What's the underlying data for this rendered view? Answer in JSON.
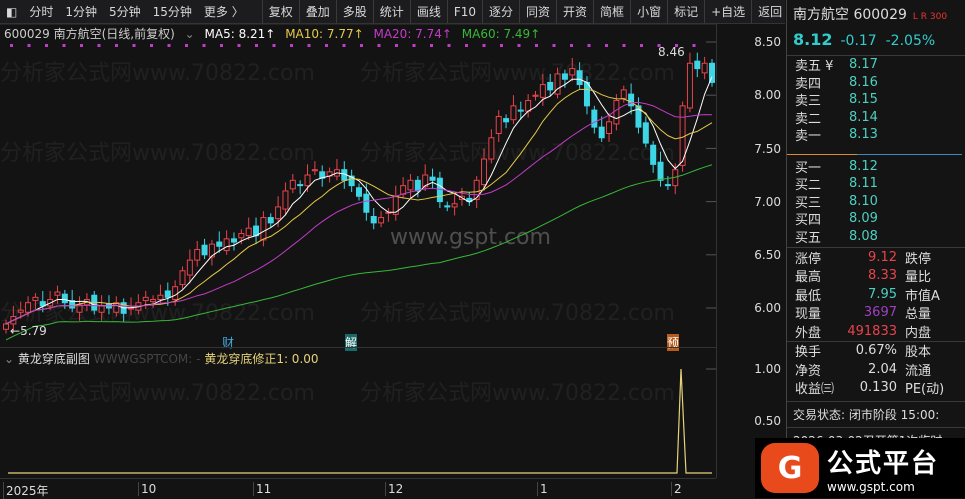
{
  "toolbar": {
    "left": [
      "分时",
      "1分钟",
      "5分钟",
      "15分钟",
      "更多 〉"
    ],
    "right": [
      "复权",
      "叠加",
      "多股",
      "统计",
      "画线",
      "F10",
      "逐分",
      "同资",
      "开资",
      "简框",
      "小窗",
      "标记",
      "+自选",
      "返回"
    ]
  },
  "info": {
    "code_name": "600029 南方航空(日线,前复权)",
    "ma5": "MA5: 8.21↑",
    "ma10": "MA10: 7.77↑",
    "ma20": "MA20: 7.74↑",
    "ma60": "MA60: 7.49↑"
  },
  "colors": {
    "up": "#e8434c",
    "down": "#3cd6e6",
    "ma5": "#ffffff",
    "ma10": "#e6c84a",
    "ma20": "#c33cc8",
    "ma60": "#38b838",
    "sub": "#e6d27a"
  },
  "price_axis": [
    "8.50",
    "8.00",
    "7.50",
    "7.00",
    "6.50",
    "6.00"
  ],
  "sub_axis": [
    "1.00",
    "0.50"
  ],
  "annotations": {
    "high": "8.46",
    "low": "5.79",
    "marks": [
      "财",
      "解",
      "预"
    ]
  },
  "subchart": {
    "title": "黄龙穿底副图",
    "watermark": "WWWGSPTCOM: -",
    "indicator": "黄龙穿底修正1: 0.00"
  },
  "dates": [
    "2025年",
    "10",
    "11",
    "12",
    "1",
    "2"
  ],
  "watermarks": {
    "site": "分析家公式网www.70822.com",
    "center": "www.gspt.com"
  },
  "chart_data": {
    "type": "candlestick",
    "closes": [
      5.85,
      5.92,
      5.98,
      6.05,
      6.1,
      6.02,
      6.08,
      6.15,
      6.05,
      6.0,
      6.03,
      6.08,
      5.98,
      6.02,
      6.0,
      6.05,
      5.95,
      6.0,
      6.05,
      6.1,
      6.08,
      6.12,
      6.1,
      6.2,
      6.35,
      6.45,
      6.55,
      6.5,
      6.6,
      6.58,
      6.65,
      6.62,
      6.7,
      6.75,
      6.68,
      6.85,
      6.8,
      6.95,
      7.1,
      7.2,
      7.15,
      7.25,
      7.3,
      7.22,
      7.28,
      7.3,
      7.2,
      7.15,
      7.05,
      6.9,
      6.8,
      6.85,
      6.9,
      7.05,
      7.15,
      7.2,
      7.1,
      7.25,
      7.2,
      7.0,
      6.95,
      6.98,
      7.05,
      7.0,
      7.2,
      7.4,
      7.6,
      7.8,
      7.75,
      7.9,
      7.85,
      7.95,
      8.0,
      8.1,
      8.05,
      8.2,
      8.15,
      8.25,
      8.1,
      7.9,
      7.7,
      7.6,
      7.75,
      7.95,
      8.05,
      7.9,
      7.7,
      7.55,
      7.35,
      7.2,
      7.15,
      7.3,
      7.9,
      8.3,
      8.25,
      8.3,
      8.12
    ],
    "sub_values": [
      0,
      0,
      0,
      0,
      1,
      0,
      0
    ],
    "ylim": [
      5.7,
      8.6
    ]
  },
  "panel": {
    "name": "南方航空",
    "code": "600029",
    "badge": "L R 300",
    "price": "8.12",
    "change": "-0.17",
    "pct": "-2.05%",
    "asks": [
      {
        "l": "卖五 ¥",
        "v": "8.17"
      },
      {
        "l": "卖四",
        "v": "8.16"
      },
      {
        "l": "卖三",
        "v": "8.15"
      },
      {
        "l": "卖二",
        "v": "8.14"
      },
      {
        "l": "卖一",
        "v": "8.13"
      }
    ],
    "bids": [
      {
        "l": "买一",
        "v": "8.12"
      },
      {
        "l": "买二",
        "v": "8.11"
      },
      {
        "l": "买三",
        "v": "8.10"
      },
      {
        "l": "买四",
        "v": "8.09"
      },
      {
        "l": "买五",
        "v": "8.08"
      }
    ],
    "stats": [
      {
        "l": "涨停",
        "v": "9.12",
        "c": "#e8434c",
        "r": "跌停"
      },
      {
        "l": "最高",
        "v": "8.33",
        "c": "#e8434c",
        "r": "量比"
      },
      {
        "l": "最低",
        "v": "7.95",
        "c": "#4dd0c0",
        "r": "市值A"
      },
      {
        "l": "现量",
        "v": "3697",
        "c": "#a040c0",
        "r": "总量"
      },
      {
        "l": "外盘",
        "v": "491833",
        "c": "#e8434c",
        "r": "内盘"
      }
    ],
    "stats2": [
      {
        "l": "换手",
        "v": "0.67%",
        "r": "股本"
      },
      {
        "l": "净资",
        "v": "2.04",
        "r": "流通"
      },
      {
        "l": "收益㈢",
        "v": "0.130",
        "r": "PE(动)"
      }
    ],
    "status": "交易状态: 闭市阶段 15:00:",
    "news": "2026-03-02召开第1次临时"
  },
  "logo": {
    "title": "公式平台",
    "url": "www.gspt.com"
  }
}
